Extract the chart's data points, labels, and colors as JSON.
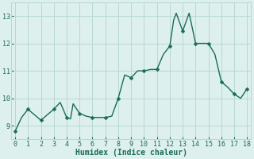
{
  "x": [
    0,
    0.5,
    1,
    1.5,
    2,
    2.5,
    3,
    3.5,
    4,
    4.3,
    4.5,
    5,
    5.5,
    6,
    6.5,
    7,
    7.5,
    8,
    8.5,
    9,
    9.5,
    10,
    10.5,
    11,
    11.5,
    12,
    12.3,
    12.5,
    13,
    13.5,
    14,
    14.5,
    15,
    15.5,
    16,
    16.5,
    17,
    17.5,
    18
  ],
  "y": [
    8.8,
    9.3,
    9.6,
    9.4,
    9.2,
    9.4,
    9.6,
    9.85,
    9.3,
    9.25,
    9.8,
    9.45,
    9.35,
    9.3,
    9.3,
    9.3,
    9.35,
    10.0,
    10.85,
    10.75,
    11.0,
    11.0,
    11.05,
    11.05,
    11.6,
    11.9,
    12.85,
    13.1,
    12.45,
    13.1,
    12.0,
    12.0,
    12.0,
    11.6,
    10.6,
    10.4,
    10.15,
    10.0,
    10.35
  ],
  "marker_x": [
    0,
    1,
    2,
    3,
    4,
    5,
    6,
    7,
    8,
    9,
    10,
    11,
    12,
    13,
    14,
    15,
    16,
    17,
    18
  ],
  "marker_y": [
    8.8,
    9.6,
    9.2,
    9.6,
    9.3,
    9.45,
    9.3,
    9.3,
    10.0,
    10.75,
    11.0,
    11.05,
    11.9,
    12.45,
    12.0,
    12.0,
    10.6,
    10.15,
    10.35
  ],
  "line_color": "#1a6b5a",
  "marker_color": "#1a6b5a",
  "bg_color": "#ddf0ed",
  "grid_color": "#b8d8d4",
  "xlabel": "Humidex (Indice chaleur)",
  "xlabel_fontsize": 7,
  "ylim": [
    8.5,
    13.5
  ],
  "xlim": [
    -0.3,
    18.3
  ],
  "yticks": [
    9,
    10,
    11,
    12,
    13
  ],
  "xticks": [
    0,
    1,
    2,
    3,
    4,
    5,
    6,
    7,
    8,
    9,
    10,
    11,
    12,
    13,
    14,
    15,
    16,
    17,
    18
  ],
  "tick_fontsize": 6,
  "linewidth": 1.0,
  "markersize": 2.5
}
